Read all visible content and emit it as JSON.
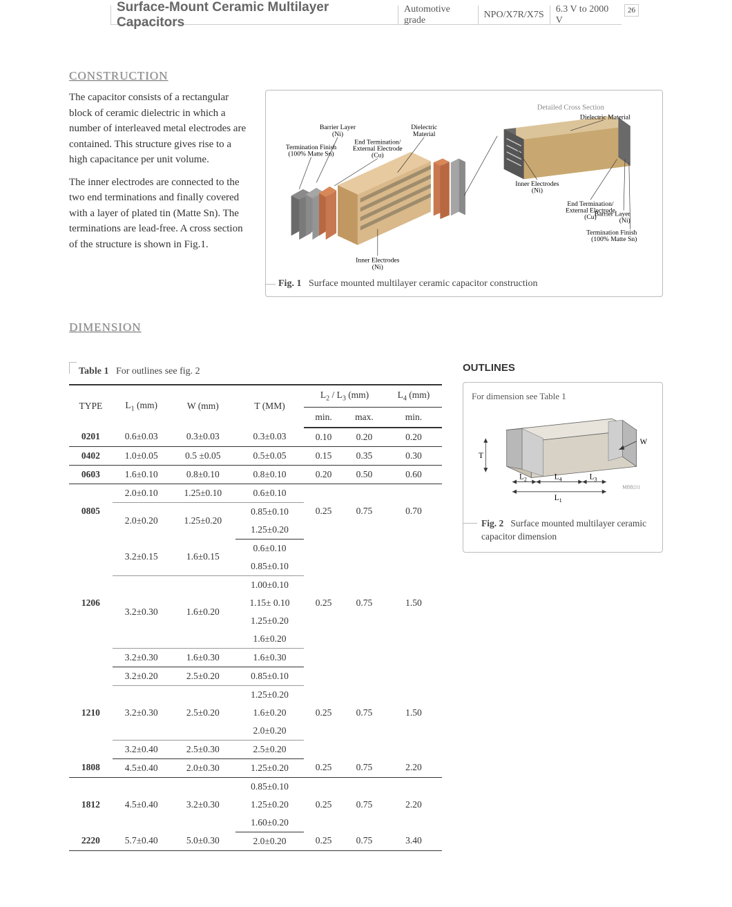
{
  "header": {
    "title": "Surface-Mount Ceramic Multilayer Capacitors",
    "seg1": "Automotive grade",
    "seg2": "NPO/X7R/X7S",
    "seg3": "6.3 V to 2000 V",
    "page": "26"
  },
  "construction": {
    "heading": "CONSTRUCTION",
    "p1": "The capacitor consists of a rectangular block of ceramic dielectric in which a number of interleaved metal electrodes are contained. This structure gives rise to a high capacitance per unit volume.",
    "p2": "The inner electrodes are connected to the two end terminations and finally covered with a layer of plated tin (Matte Sn). The terminations are lead-free. A cross section of the structure is shown in Fig.1.",
    "fig1_num": "Fig. 1",
    "fig1_caption": "Surface mounted multilayer ceramic capacitor construction",
    "labels": {
      "barrier": "Barrier Layer\n(Ni)",
      "termfin": "Termination Finish\n(100% Matte Sn)",
      "endterm": "End Termination/\nExternal Electrode\n(Cu)",
      "dielectric": "Dielectric\nMaterial",
      "inner": "Inner Electrodes\n(Ni)",
      "cross": "Detailed Cross Section",
      "dielmat": "Dielectric Material",
      "inner2": "Inner Electrodes\n(Ni)",
      "endterm2": "End Termination/\nExternal Electrode\n(Cu)",
      "barrier2": "Barrier Layer\n(Ni)",
      "termfin2": "Termination Finish\n(100% Matte Sn)"
    }
  },
  "dimension": {
    "heading": "DIMENSION",
    "table_num": "Table 1",
    "table_caption": "For outlines see fig. 2",
    "columns": {
      "type": "TYPE",
      "l1": "L₁ (mm)",
      "w": "W (mm)",
      "t": "T (MM)",
      "l23": "L₂ / L₃ (mm)",
      "l4": "L₄ (mm)",
      "min": "min.",
      "max": "max."
    }
  },
  "outlines": {
    "heading": "OUTLINES",
    "note": "For dimension see Table 1",
    "fig2_num": "Fig. 2",
    "fig2_caption": "Surface mounted multilayer ceramic capacitor dimension",
    "labels": {
      "T": "T",
      "W": "W",
      "L1": "L₁",
      "L2": "L₂",
      "L3": "L₃",
      "L4": "L₄",
      "code": "MBB211"
    }
  },
  "table_rows": [
    {
      "type": "0201",
      "groups": [
        {
          "l1": "0.6±0.03",
          "w": "0.3±0.03",
          "t": [
            "0.3±0.03"
          ]
        }
      ],
      "min": "0.10",
      "max": "0.20",
      "l4": "0.20"
    },
    {
      "type": "0402",
      "groups": [
        {
          "l1": "1.0±0.05",
          "w": "0.5 ±0.05",
          "t": [
            "0.5±0.05"
          ]
        }
      ],
      "min": "0.15",
      "max": "0.35",
      "l4": "0.30"
    },
    {
      "type": "0603",
      "groups": [
        {
          "l1": "1.6±0.10",
          "w": "0.8±0.10",
          "t": [
            "0.8±0.10"
          ]
        }
      ],
      "min": "0.20",
      "max": "0.50",
      "l4": "0.60"
    },
    {
      "type": "0805",
      "groups": [
        {
          "l1": "2.0±0.10",
          "w": "1.25±0.10",
          "t": [
            "0.6±0.10"
          ]
        },
        {
          "l1": "2.0±0.20",
          "w": "1.25±0.20",
          "t": [
            "0.85±0.10",
            "1.25±0.20"
          ]
        }
      ],
      "min": "0.25",
      "max": "0.75",
      "l4": "0.70"
    },
    {
      "type": "1206",
      "groups": [
        {
          "l1": "3.2±0.15",
          "w": "1.6±0.15",
          "t": [
            "0.6±0.10",
            "0.85±0.10"
          ]
        },
        {
          "l1": "3.2±0.30",
          "w": "1.6±0.20",
          "t": [
            "1.00±0.10",
            "1.15± 0.10",
            "1.25±0.20",
            "1.6±0.20"
          ]
        },
        {
          "l1": "3.2±0.30",
          "w": "1.6±0.30",
          "t": [
            "1.6±0.30"
          ]
        }
      ],
      "min": "0.25",
      "max": "0.75",
      "l4": "1.50"
    },
    {
      "type": "1210",
      "groups": [
        {
          "l1": "3.2±0.20",
          "w": "2.5±0.20",
          "t": [
            "0.85±0.10"
          ]
        },
        {
          "l1": "3.2±0.30",
          "w": "2.5±0.20",
          "t": [
            "1.25±0.20",
            "1.6±0.20",
            "2.0±0.20"
          ]
        },
        {
          "l1": "3.2±0.40",
          "w": "2.5±0.30",
          "t": [
            "2.5±0.20"
          ]
        }
      ],
      "min": "0.25",
      "max": "0.75",
      "l4": "1.50"
    },
    {
      "type": "1808",
      "groups": [
        {
          "l1": "4.5±0.40",
          "w": "2.0±0.30",
          "t": [
            "1.25±0.20"
          ]
        }
      ],
      "min": "0.25",
      "max": "0.75",
      "l4": "2.20"
    },
    {
      "type": "1812",
      "groups": [
        {
          "l1": "4.5±0.40",
          "w": "3.2±0.30",
          "t": [
            "0.85±0.10",
            "1.25±0.20",
            "1.60±0.20"
          ]
        }
      ],
      "min": "0.25",
      "max": "0.75",
      "l4": "2.20"
    },
    {
      "type": "2220",
      "groups": [
        {
          "l1": "5.7±0.40",
          "w": "5.0±0.30",
          "t": [
            "2.0±0.20"
          ]
        }
      ],
      "min": "0.25",
      "max": "0.75",
      "l4": "3.40"
    }
  ],
  "colors": {
    "ceramic": "#d9b88a",
    "ceramic_dark": "#c19862",
    "electrode": "#9e8c6c",
    "copper": "#c87850",
    "nickel": "#8a8a8a",
    "tin": "#6a6a6a",
    "cross_body": "#555555"
  }
}
